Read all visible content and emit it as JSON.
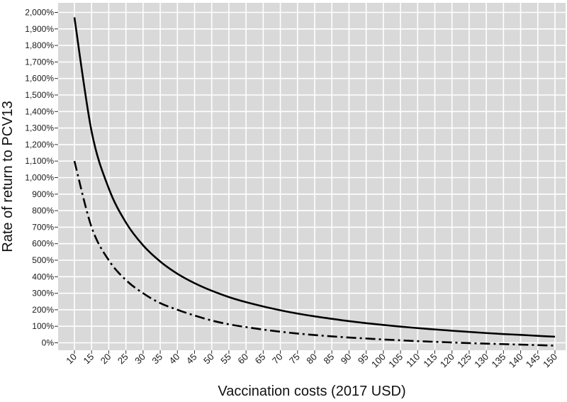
{
  "chart_data": {
    "type": "line",
    "xlabel": "Vaccination costs (2017 USD)",
    "ylabel": "Rate of return to PCV13",
    "x": [
      10,
      15,
      20,
      25,
      30,
      35,
      40,
      45,
      50,
      55,
      60,
      65,
      70,
      75,
      80,
      85,
      90,
      95,
      100,
      105,
      110,
      115,
      120,
      125,
      130,
      135,
      140,
      145,
      150
    ],
    "x_tick_labels": [
      "10",
      "15",
      "20",
      "25",
      "30",
      "35",
      "40",
      "45",
      "50",
      "55",
      "60",
      "65",
      "70",
      "75",
      "80",
      "85",
      "90",
      "95",
      "100",
      "105",
      "110",
      "115",
      "120",
      "125",
      "130",
      "135",
      "140",
      "145",
      "150"
    ],
    "y_tick_values": [
      0,
      100,
      200,
      300,
      400,
      500,
      600,
      700,
      800,
      900,
      1000,
      1100,
      1200,
      1300,
      1400,
      1500,
      1600,
      1700,
      1800,
      1900,
      2000
    ],
    "y_tick_labels": [
      "0%",
      "100%",
      "200%",
      "300%",
      "400%",
      "500%",
      "600%",
      "700%",
      "800%",
      "900%",
      "1,000%",
      "1,100%",
      "1,200%",
      "1,300%",
      "1,400%",
      "1,500%",
      "1,600%",
      "1,700%",
      "1,800%",
      "1,900%",
      "2,000%"
    ],
    "xlim": [
      8,
      152
    ],
    "ylim": [
      -60,
      2030
    ],
    "grid": true,
    "background": "#d9d9d9",
    "grid_color": "#ffffff",
    "series": [
      {
        "style": "solid",
        "color": "#000000",
        "values": [
          1970,
          1280,
          935,
          728,
          590,
          492,
          418,
          361,
          315,
          277,
          246,
          220,
          197,
          177,
          160,
          145,
          131,
          119,
          108,
          98,
          89,
          81,
          73,
          66,
          59,
          53,
          48,
          42,
          37
        ]
      },
      {
        "style": "dash-dot",
        "color": "#000000",
        "values": [
          1100,
          700,
          500,
          380,
          300,
          240,
          200,
          165,
          135,
          112,
          95,
          80,
          67,
          56,
          47,
          39,
          32,
          26,
          20,
          15,
          10,
          6,
          2,
          -2,
          -5,
          -8,
          -11,
          -14,
          -17
        ]
      }
    ]
  }
}
